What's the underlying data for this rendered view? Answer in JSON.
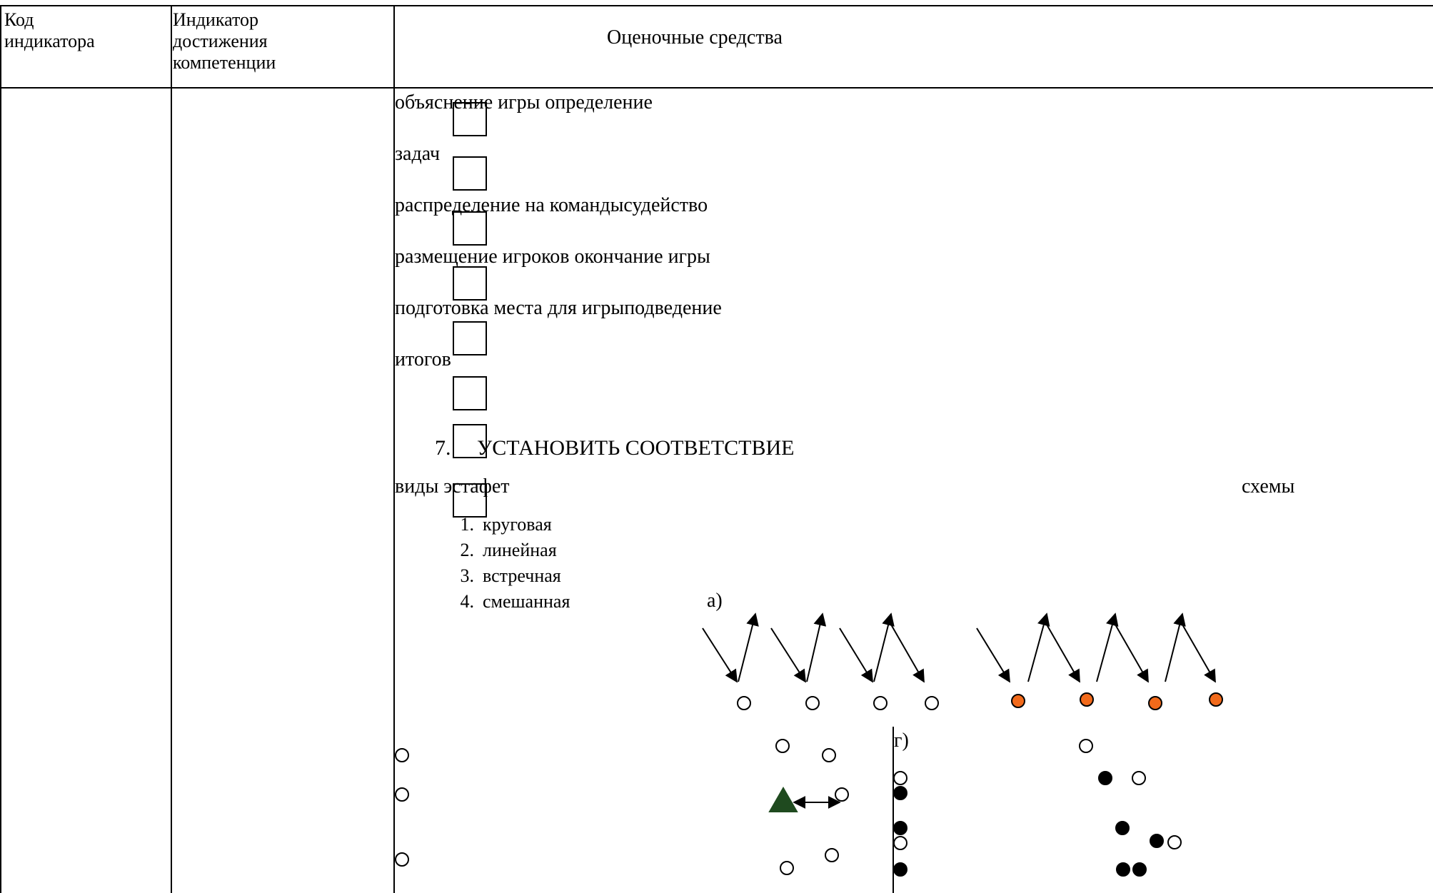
{
  "table": {
    "headers": [
      "Код индикатора",
      "Индикатор достижения компетенции",
      "Оценочные средства"
    ],
    "header_lines": {
      "col1": [
        "Код",
        "индикатора"
      ],
      "col2": [
        "Индикатор",
        "достижения",
        "компетенции"
      ],
      "col3": "Оценочные средства"
    }
  },
  "content": {
    "lines": [
      "объяснение игры определение",
      "задач",
      "распределение на командысудейство",
      "размещение игроков окончание игры",
      "подготовка места для игрыподведение",
      "итогов"
    ],
    "task_number": "7.",
    "task_title": "УСТАНОВИТЬ СООТВЕТСТВИЕ",
    "left_heading": "виды эстафет",
    "right_heading": "схемы",
    "relay_types": [
      {
        "num": "1.",
        "label": "круговая"
      },
      {
        "num": "2.",
        "label": "линейная"
      },
      {
        "num": "3.",
        "label": "встречная"
      },
      {
        "num": "4.",
        "label": "смешанная"
      }
    ],
    "scheme_a_label": "а)",
    "scheme_g_label": "г)"
  },
  "colors": {
    "orange_player": "#f26a1b",
    "triangle": "#1f4a1f",
    "lines": "#000000"
  },
  "icons": [
    "checkbox-icon",
    "player-circle-icon",
    "arrow-icon",
    "triangle-marker-icon"
  ]
}
